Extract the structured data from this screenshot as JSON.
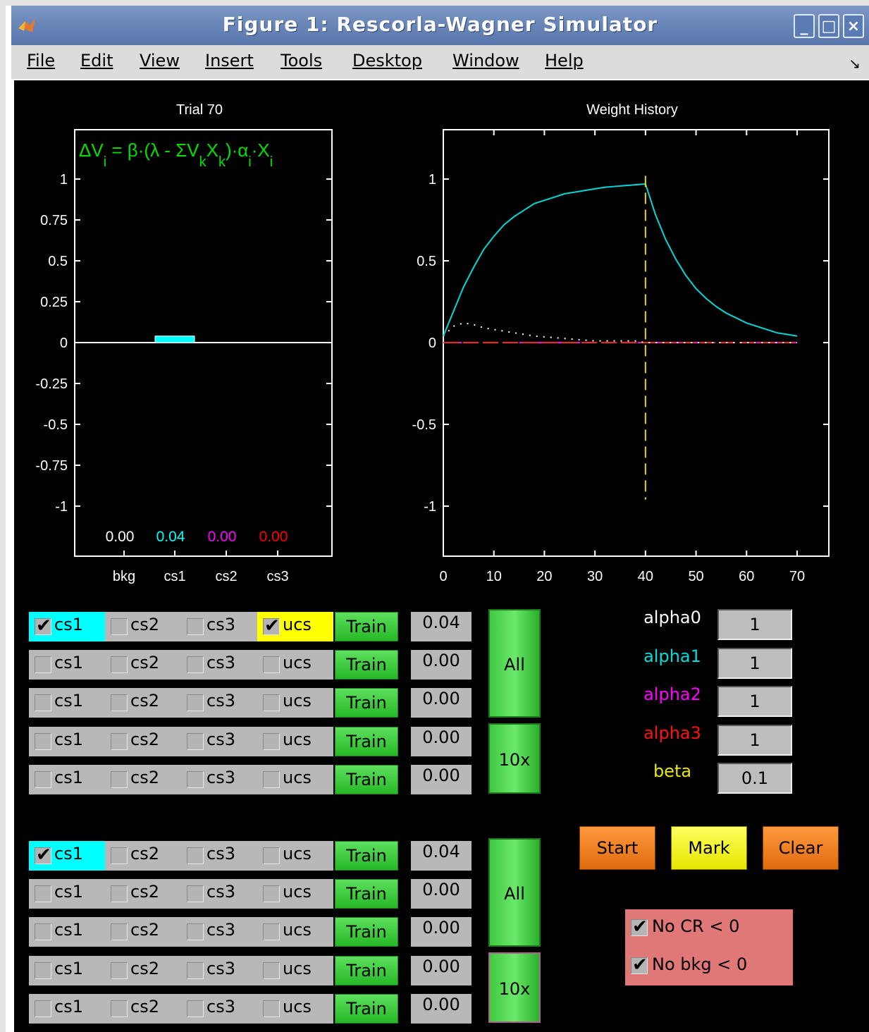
{
  "window": {
    "title": "Figure 1: Rescorla-Wagner Simulator",
    "controls": {
      "minimize": "_",
      "maximize": "□",
      "close": "×"
    }
  },
  "menu": [
    {
      "label": "File"
    },
    {
      "label": "Edit"
    },
    {
      "label": "View"
    },
    {
      "label": "Insert"
    },
    {
      "label": "Tools"
    },
    {
      "label": "Desktop"
    },
    {
      "label": "Window"
    },
    {
      "label": "Help"
    }
  ],
  "bar_plot": {
    "title": "Trial 70",
    "formula": "ΔV_i = β·(λ - ΣV_kX_k)·α_i·X_i",
    "yticks": [
      "1",
      "0.75",
      "0.5",
      "0.25",
      "0",
      "-0.25",
      "-0.5",
      "-0.75",
      "-1"
    ],
    "categories": [
      "bkg",
      "cs1",
      "cs2",
      "cs3"
    ],
    "value_labels": [
      "0.00",
      "0.04",
      "0.00",
      "0.00"
    ]
  },
  "line_plot": {
    "title": "Weight History",
    "yticks": [
      "1",
      "0.5",
      "0",
      "-0.5",
      "-1"
    ],
    "xticks": [
      "0",
      "10",
      "20",
      "30",
      "40",
      "50",
      "60",
      "70"
    ]
  },
  "chart_data": [
    {
      "type": "bar",
      "title": "Trial 70",
      "categories": [
        "bkg",
        "cs1",
        "cs2",
        "cs3"
      ],
      "values": [
        0.0,
        0.04,
        0.0,
        0.0
      ],
      "colors": [
        "#ffffff",
        "#00ffff",
        "#ff00ff",
        "#ff0000"
      ],
      "ylim": [
        -1.3,
        1.3
      ]
    },
    {
      "type": "line",
      "title": "Weight History",
      "xlim": [
        0,
        70
      ],
      "ylim": [
        -1.3,
        1.3
      ],
      "marker_x": 40,
      "series": [
        {
          "color": "#00d8d8",
          "style": "solid",
          "x": [
            0,
            2,
            4,
            6,
            8,
            10,
            12,
            14,
            16,
            18,
            20,
            22,
            24,
            26,
            28,
            30,
            32,
            34,
            36,
            38,
            40,
            42,
            44,
            46,
            48,
            50,
            52,
            54,
            56,
            58,
            60,
            62,
            64,
            66,
            68,
            70
          ],
          "y": [
            0.04,
            0.19,
            0.34,
            0.46,
            0.57,
            0.65,
            0.72,
            0.77,
            0.81,
            0.85,
            0.87,
            0.89,
            0.91,
            0.92,
            0.93,
            0.94,
            0.95,
            0.955,
            0.96,
            0.965,
            0.97,
            0.78,
            0.63,
            0.51,
            0.41,
            0.33,
            0.27,
            0.22,
            0.18,
            0.15,
            0.12,
            0.1,
            0.08,
            0.06,
            0.05,
            0.04
          ]
        },
        {
          "color": "#ffffff",
          "style": "dotted",
          "x": [
            0,
            2,
            4,
            6,
            8,
            10,
            14,
            18,
            22,
            26,
            30,
            34,
            38,
            40,
            45,
            50,
            60,
            70
          ],
          "y": [
            0.04,
            0.1,
            0.12,
            0.11,
            0.09,
            0.08,
            0.06,
            0.04,
            0.03,
            0.02,
            0.01,
            0.01,
            0.01,
            0.0,
            0.0,
            0.0,
            0.0,
            0.0
          ]
        },
        {
          "color": "#ff00ff",
          "style": "dashed",
          "x": [
            0,
            70
          ],
          "y": [
            0,
            0
          ]
        },
        {
          "color": "#ff2020",
          "style": "dashed",
          "x": [
            0,
            70
          ],
          "y": [
            0,
            0
          ]
        }
      ]
    }
  ],
  "panels": [
    {
      "rows": [
        {
          "cs1": true,
          "cs2": false,
          "cs3": false,
          "ucs": true,
          "value": "0.04",
          "cs1_hl": true,
          "ucs_hl": true
        },
        {
          "cs1": false,
          "cs2": false,
          "cs3": false,
          "ucs": false,
          "value": "0.00",
          "cs1_hl": false,
          "ucs_hl": false
        },
        {
          "cs1": false,
          "cs2": false,
          "cs3": false,
          "ucs": false,
          "value": "0.00",
          "cs1_hl": false,
          "ucs_hl": false
        },
        {
          "cs1": false,
          "cs2": false,
          "cs3": false,
          "ucs": false,
          "value": "0.00",
          "cs1_hl": false,
          "ucs_hl": false
        },
        {
          "cs1": false,
          "cs2": false,
          "cs3": false,
          "ucs": false,
          "value": "0.00",
          "cs1_hl": false,
          "ucs_hl": false
        }
      ]
    },
    {
      "rows": [
        {
          "cs1": true,
          "cs2": false,
          "cs3": false,
          "ucs": false,
          "value": "0.04",
          "cs1_hl": true,
          "ucs_hl": false
        },
        {
          "cs1": false,
          "cs2": false,
          "cs3": false,
          "ucs": false,
          "value": "0.00",
          "cs1_hl": false,
          "ucs_hl": false
        },
        {
          "cs1": false,
          "cs2": false,
          "cs3": false,
          "ucs": false,
          "value": "0.00",
          "cs1_hl": false,
          "ucs_hl": false
        },
        {
          "cs1": false,
          "cs2": false,
          "cs3": false,
          "ucs": false,
          "value": "0.00",
          "cs1_hl": false,
          "ucs_hl": false
        },
        {
          "cs1": false,
          "cs2": false,
          "cs3": false,
          "ucs": false,
          "value": "0.00",
          "cs1_hl": false,
          "ucs_hl": false
        }
      ]
    }
  ],
  "labels": {
    "cs1": "cs1",
    "cs2": "cs2",
    "cs3": "cs3",
    "ucs": "ucs",
    "train": "Train",
    "all": "All",
    "ten": "10x"
  },
  "params": [
    {
      "label": "alpha0",
      "value": "1",
      "color": "#ffffff"
    },
    {
      "label": "alpha1",
      "value": "1",
      "color": "#00dcdc"
    },
    {
      "label": "alpha2",
      "value": "1",
      "color": "#ff00ff"
    },
    {
      "label": "alpha3",
      "value": "1",
      "color": "#ff1010"
    },
    {
      "label": "beta",
      "value": "0.1",
      "color": "#e8e800"
    }
  ],
  "buttons": {
    "start": "Start",
    "mark": "Mark",
    "clear": "Clear"
  },
  "options": [
    {
      "label": "No CR < 0",
      "checked": true
    },
    {
      "label": "No bkg < 0",
      "checked": true
    }
  ]
}
